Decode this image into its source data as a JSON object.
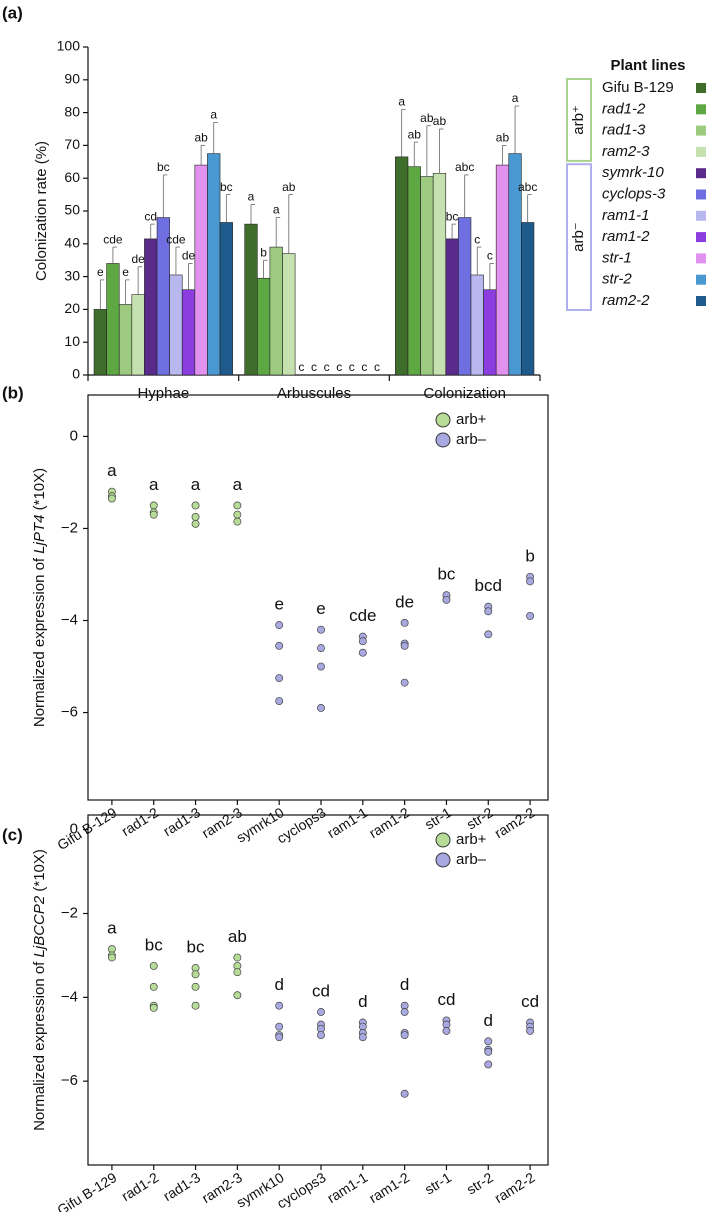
{
  "panels": [
    "(a)",
    "(b)",
    "(c)"
  ],
  "chart_data": [
    {
      "type": "bar",
      "ylabel": "Colonization rate (%)",
      "ylim": [
        0,
        100
      ],
      "yticks": [
        0,
        10,
        20,
        30,
        40,
        50,
        60,
        70,
        80,
        90,
        100
      ],
      "categories": [
        "Hyphae",
        "Arbuscules",
        "Colonization"
      ],
      "legend_title": "Plant lines",
      "legend_groups": [
        "arb⁺",
        "arb⁻"
      ],
      "series": [
        {
          "name": "Gifu B-129",
          "color": "#3f6e2c",
          "values": [
            20,
            46,
            66.5
          ],
          "errors": [
            9,
            6,
            14.5
          ],
          "letters": [
            "e",
            "a",
            "a"
          ]
        },
        {
          "name": "rad1-2",
          "color": "#5ea844",
          "values": [
            34,
            29.5,
            63.5
          ],
          "errors": [
            5,
            5.5,
            7.5
          ],
          "letters": [
            "cde",
            "b",
            "ab"
          ]
        },
        {
          "name": "rad1-3",
          "color": "#9ccb7f",
          "values": [
            21.5,
            39,
            60.5
          ],
          "errors": [
            7.5,
            9,
            15.5
          ],
          "letters": [
            "e",
            "a",
            "ab"
          ]
        },
        {
          "name": "ram2-3",
          "color": "#c6e1b0",
          "values": [
            24.5,
            37,
            61.5
          ],
          "errors": [
            8.5,
            18,
            13.5
          ],
          "letters": [
            "de",
            "ab",
            "ab"
          ]
        },
        {
          "name": "symrk-10",
          "color": "#5b2b8c",
          "values": [
            41.5,
            0,
            41.5
          ],
          "errors": [
            4.5,
            null,
            4.5
          ],
          "letters": [
            "cd",
            "c",
            "bc"
          ]
        },
        {
          "name": "cyclops-3",
          "color": "#6f6fe2",
          "values": [
            48,
            0,
            48
          ],
          "errors": [
            13,
            null,
            13
          ],
          "letters": [
            "bc",
            "c",
            "abc"
          ]
        },
        {
          "name": "ram1-1",
          "color": "#b8b8ef",
          "values": [
            30.5,
            0,
            30.5
          ],
          "errors": [
            8.5,
            null,
            8.5
          ],
          "letters": [
            "cde",
            "c",
            "c"
          ]
        },
        {
          "name": "ram1-2",
          "color": "#8b3de0",
          "values": [
            26,
            0,
            26
          ],
          "errors": [
            8,
            null,
            8
          ],
          "letters": [
            "de",
            "c",
            "c"
          ]
        },
        {
          "name": "str-1",
          "color": "#e092ee",
          "values": [
            64,
            0,
            64
          ],
          "errors": [
            6,
            null,
            6
          ],
          "letters": [
            "ab",
            "c",
            "ab"
          ]
        },
        {
          "name": "str-2",
          "color": "#4a98d1",
          "values": [
            67.5,
            0,
            67.5
          ],
          "errors": [
            9.5,
            null,
            14.5
          ],
          "letters": [
            "a",
            "c",
            "a"
          ]
        },
        {
          "name": "ram2-2",
          "color": "#1f5a8c",
          "values": [
            46.5,
            0,
            46.5
          ],
          "errors": [
            8.5,
            null,
            8.5
          ],
          "letters": [
            "bc",
            "c",
            "abc"
          ]
        }
      ]
    },
    {
      "type": "strip",
      "ylabel": [
        "Normalized expression of ",
        "LjPT4",
        " (*10X)"
      ],
      "ylim": [
        -7.9,
        0.9
      ],
      "yticks": [
        0,
        {
          "value": -2,
          "label": "−2"
        },
        {
          "value": -4,
          "label": "−4"
        },
        {
          "value": -6,
          "label": "−6"
        }
      ],
      "categories": [
        "Gifu B-129",
        "rad1-2",
        "rad1-3",
        "ram2-3",
        "symrk10",
        "cyclops3",
        "ram1-1",
        "ram1-2",
        "str-1",
        "str-2",
        "ram2-2"
      ],
      "letters": [
        "a",
        "a",
        "a",
        "a",
        "e",
        "e",
        "cde",
        "de",
        "bc",
        "bcd",
        "b"
      ],
      "legend": "upper right",
      "series": [
        {
          "name": "arb+",
          "color": "#b6dc98",
          "values": [
            [
              -1.2,
              -1.3,
              -1.35
            ],
            [
              -1.5,
              -1.65,
              -1.7
            ],
            [
              -1.5,
              -1.75,
              -1.9
            ],
            [
              -1.5,
              -1.7,
              -1.85
            ],
            null,
            null,
            null,
            null,
            null,
            null,
            null
          ]
        },
        {
          "name": "arb–",
          "color": "#a9a9e2",
          "values": [
            null,
            null,
            null,
            null,
            [
              -4.1,
              -4.55,
              -5.25,
              -5.75
            ],
            [
              -4.2,
              -4.6,
              -5.0,
              -5.9
            ],
            [
              -4.35,
              -4.45,
              -4.7
            ],
            [
              -4.05,
              -4.5,
              -4.55,
              -5.35
            ],
            [
              -3.45,
              -3.55
            ],
            [
              -3.7,
              -3.8,
              -4.3
            ],
            [
              -3.05,
              -3.15,
              -3.9
            ]
          ]
        }
      ]
    },
    {
      "type": "strip",
      "ylabel": [
        "Normalized expression of ",
        "LjBCCP2",
        " (*10X)"
      ],
      "ylim": [
        -8.0,
        0.35
      ],
      "yticks": [
        0,
        {
          "value": -2,
          "label": "−2"
        },
        {
          "value": -4,
          "label": "−4"
        },
        {
          "value": -6,
          "label": "−6"
        }
      ],
      "categories": [
        "Gifu B-129",
        "rad1-2",
        "rad1-3",
        "ram2-3",
        "symrk10",
        "cyclops3",
        "ram1-1",
        "ram1-2",
        "str-1",
        "str-2",
        "ram2-2"
      ],
      "letters": [
        "a",
        "bc",
        "bc",
        "ab",
        "d",
        "cd",
        "d",
        "d",
        "cd",
        "d",
        "cd"
      ],
      "legend": "upper right",
      "series": [
        {
          "name": "arb+",
          "color": "#b6dc98",
          "values": [
            [
              -2.85,
              -3.0,
              -3.05
            ],
            [
              -3.25,
              -3.75,
              -4.2,
              -4.25
            ],
            [
              -3.3,
              -3.45,
              -3.75,
              -4.2
            ],
            [
              -3.05,
              -3.25,
              -3.4,
              -3.95
            ],
            null,
            null,
            null,
            null,
            null,
            null,
            null
          ]
        },
        {
          "name": "arb–",
          "color": "#a9a9e2",
          "values": [
            null,
            null,
            null,
            null,
            [
              -4.2,
              -4.7,
              -4.9,
              -4.95
            ],
            [
              -4.35,
              -4.65,
              -4.75,
              -4.9
            ],
            [
              -4.6,
              -4.7,
              -4.85,
              -4.95
            ],
            [
              -4.2,
              -4.35,
              -4.85,
              -4.9,
              -6.3
            ],
            [
              -4.55,
              -4.65,
              -4.8
            ],
            [
              -5.05,
              -5.25,
              -5.3,
              -5.6
            ],
            [
              -4.6,
              -4.7,
              -4.8
            ]
          ]
        }
      ]
    }
  ]
}
